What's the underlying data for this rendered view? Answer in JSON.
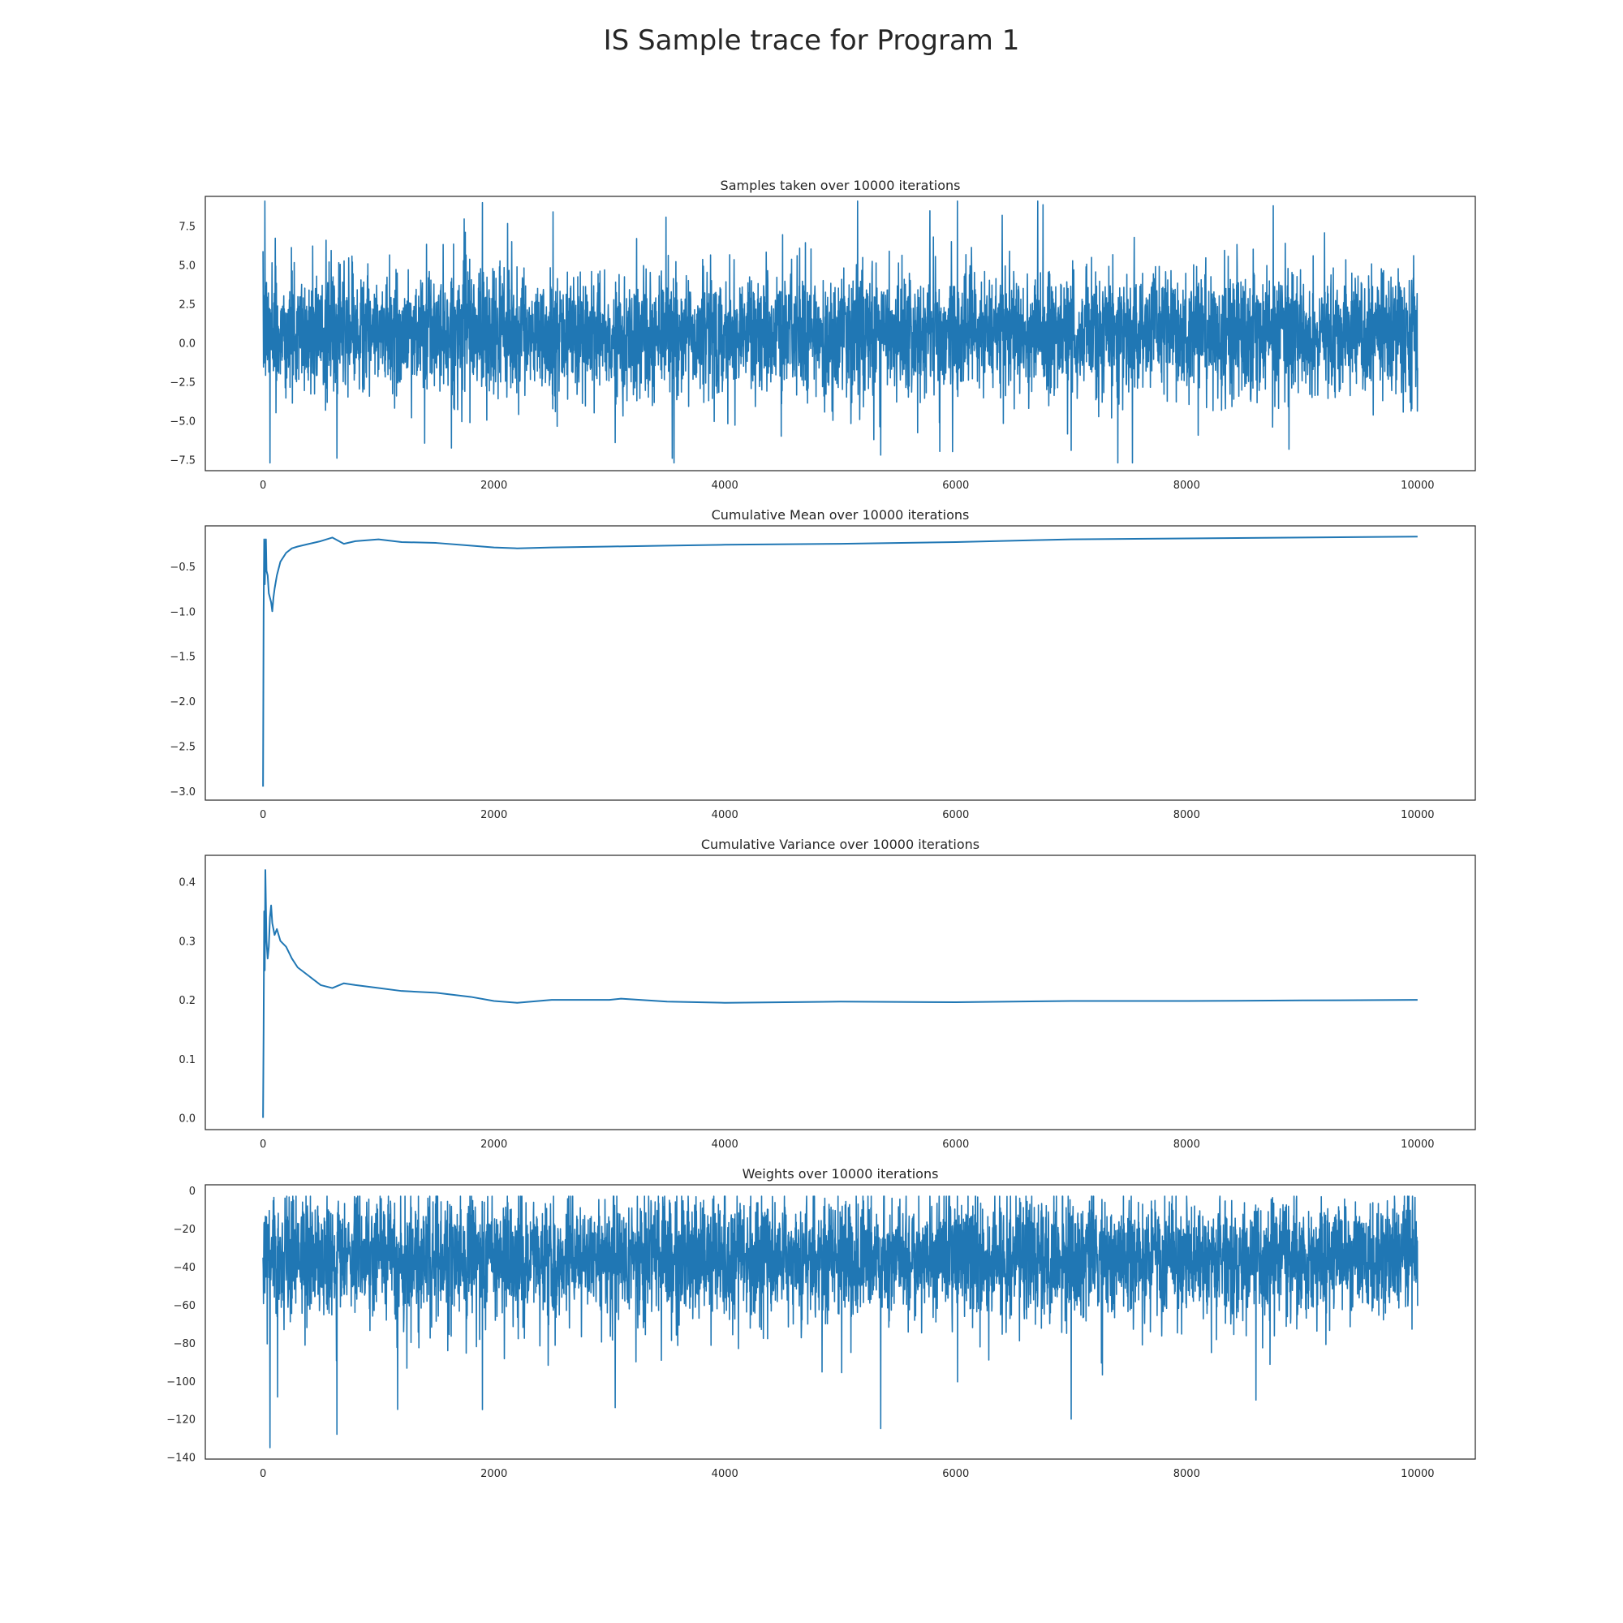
{
  "figure": {
    "title": "IS Sample trace for Program 1"
  },
  "colors": {
    "series": "#2077b4",
    "axes": "#262626",
    "background": "#ffffff"
  },
  "chart_data": [
    {
      "type": "line",
      "title": "Samples taken over 10000 iterations",
      "xlabel": "",
      "ylabel": "",
      "xlim": [
        -500,
        10500
      ],
      "ylim": [
        -8.2,
        9.4
      ],
      "xticks": [
        0,
        2000,
        4000,
        6000,
        8000,
        10000
      ],
      "xtick_labels": [
        "0",
        "2000",
        "4000",
        "6000",
        "8000",
        "10000"
      ],
      "yticks": [
        -7.5,
        -5.0,
        -2.5,
        0.0,
        2.5,
        5.0,
        7.5
      ],
      "ytick_labels": [
        "−7.5",
        "−5.0",
        "−2.5",
        "0.0",
        "2.5",
        "5.0",
        "7.5"
      ],
      "grid": false,
      "series": [
        {
          "n_points": 10000,
          "center": 0.6,
          "band": [
            -3.0,
            3.6
          ],
          "max": 9.1,
          "min": -7.7,
          "spikes": [
            [
              15,
              9.1
            ],
            [
              60,
              -7.7
            ],
            [
              640,
              -7.4
            ],
            [
              1900,
              9.0
            ],
            [
              3050,
              -6.4
            ],
            [
              5150,
              9.1
            ],
            [
              5350,
              -7.2
            ],
            [
              7000,
              -6.9
            ],
            [
              8750,
              8.8
            ]
          ],
          "x": [
            0,
            10000
          ]
        }
      ]
    },
    {
      "type": "line",
      "title": "Cumulative Mean over 10000 iterations",
      "xlabel": "",
      "ylabel": "",
      "xlim": [
        -500,
        10500
      ],
      "ylim": [
        -3.1,
        -0.05
      ],
      "xticks": [
        0,
        2000,
        4000,
        6000,
        8000,
        10000
      ],
      "xtick_labels": [
        "0",
        "2000",
        "4000",
        "6000",
        "8000",
        "10000"
      ],
      "yticks": [
        -3.0,
        -2.5,
        -2.0,
        -1.5,
        -1.0,
        -0.5
      ],
      "ytick_labels": [
        "−3.0",
        "−2.5",
        "−2.0",
        "−1.5",
        "−1.0",
        "−0.5"
      ],
      "grid": false,
      "series": [
        {
          "x": [
            0,
            5,
            10,
            15,
            20,
            25,
            30,
            40,
            50,
            60,
            70,
            80,
            90,
            100,
            120,
            150,
            200,
            250,
            300,
            400,
            500,
            600,
            700,
            800,
            1000,
            1200,
            1500,
            1800,
            2000,
            2200,
            2500,
            3000,
            3500,
            4000,
            5000,
            6000,
            7000,
            8000,
            9000,
            10000
          ],
          "y": [
            -2.95,
            -1.0,
            -0.2,
            -0.7,
            -0.45,
            -0.2,
            -0.55,
            -0.6,
            -0.8,
            -0.85,
            -0.9,
            -1.0,
            -0.85,
            -0.75,
            -0.6,
            -0.45,
            -0.35,
            -0.3,
            -0.28,
            -0.25,
            -0.22,
            -0.18,
            -0.25,
            -0.22,
            -0.2,
            -0.23,
            -0.24,
            -0.27,
            -0.29,
            -0.3,
            -0.29,
            -0.28,
            -0.27,
            -0.26,
            -0.25,
            -0.23,
            -0.2,
            -0.19,
            -0.18,
            -0.17
          ]
        }
      ]
    },
    {
      "type": "line",
      "title": "Cumulative Variance over 10000 iterations",
      "xlabel": "",
      "ylabel": "",
      "xlim": [
        -500,
        10500
      ],
      "ylim": [
        -0.02,
        0.445
      ],
      "xticks": [
        0,
        2000,
        4000,
        6000,
        8000,
        10000
      ],
      "xtick_labels": [
        "0",
        "2000",
        "4000",
        "6000",
        "8000",
        "10000"
      ],
      "yticks": [
        0.0,
        0.1,
        0.2,
        0.3,
        0.4
      ],
      "ytick_labels": [
        "0.0",
        "0.1",
        "0.2",
        "0.3",
        "0.4"
      ],
      "grid": false,
      "series": [
        {
          "x": [
            0,
            5,
            10,
            15,
            20,
            25,
            30,
            40,
            50,
            60,
            70,
            80,
            100,
            120,
            150,
            200,
            250,
            300,
            400,
            500,
            600,
            700,
            800,
            1000,
            1200,
            1500,
            1800,
            2000,
            2200,
            2500,
            3000,
            3100,
            3500,
            4000,
            5000,
            6000,
            7000,
            8000,
            9000,
            10000
          ],
          "y": [
            0.0,
            0.15,
            0.35,
            0.25,
            0.42,
            0.36,
            0.3,
            0.27,
            0.29,
            0.34,
            0.36,
            0.33,
            0.31,
            0.32,
            0.3,
            0.29,
            0.27,
            0.255,
            0.24,
            0.225,
            0.22,
            0.228,
            0.225,
            0.22,
            0.215,
            0.212,
            0.205,
            0.198,
            0.195,
            0.2,
            0.2,
            0.202,
            0.197,
            0.195,
            0.197,
            0.196,
            0.198,
            0.198,
            0.199,
            0.2
          ]
        }
      ]
    },
    {
      "type": "line",
      "title": "Weights over 10000 iterations",
      "xlabel": "",
      "ylabel": "",
      "xlim": [
        -500,
        10500
      ],
      "ylim": [
        -141,
        3
      ],
      "xticks": [
        0,
        2000,
        4000,
        6000,
        8000,
        10000
      ],
      "xtick_labels": [
        "0",
        "2000",
        "4000",
        "6000",
        "8000",
        "10000"
      ],
      "yticks": [
        -140,
        -120,
        -100,
        -80,
        -60,
        -40,
        -20,
        0
      ],
      "ytick_labels": [
        "−140",
        "−120",
        "−100",
        "−80",
        "−60",
        "−40",
        "−20",
        "0"
      ],
      "grid": false,
      "series": [
        {
          "n_points": 10000,
          "center": -35,
          "band": [
            -68,
            -15
          ],
          "max": -3,
          "min": -135,
          "spikes": [
            [
              60,
              -135
            ],
            [
              640,
              -128
            ],
            [
              1900,
              -115
            ],
            [
              3050,
              -114
            ],
            [
              5350,
              -125
            ],
            [
              7000,
              -120
            ],
            [
              8600,
              -110
            ]
          ],
          "x": [
            0,
            10000
          ]
        }
      ]
    }
  ]
}
